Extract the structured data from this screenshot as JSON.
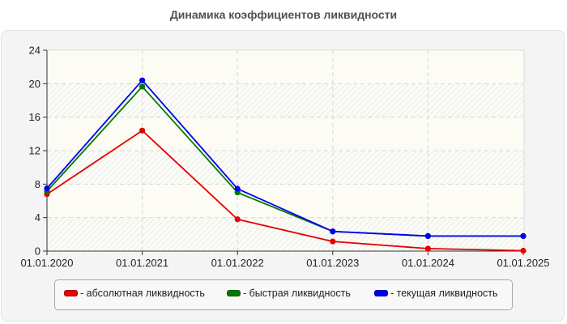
{
  "title": "Динамика коэффициентов ликвидности",
  "legend": {
    "items": [
      {
        "label": "- абсолютная ликвидность",
        "color": "#e60000"
      },
      {
        "label": "- быстрая ликвидность",
        "color": "#007a00"
      },
      {
        "label": "- текущая ликвидность",
        "color": "#0000ee"
      }
    ]
  },
  "chart_data": {
    "type": "line",
    "title": "Динамика коэффициентов ликвидности",
    "xlabel": "",
    "ylabel": "",
    "categories": [
      "01.01.2020",
      "01.01.2021",
      "01.01.2022",
      "01.01.2023",
      "01.01.2024",
      "01.01.2025"
    ],
    "y_ticks": [
      0,
      4,
      8,
      12,
      16,
      20,
      24
    ],
    "ylim": [
      0,
      24
    ],
    "grid": true,
    "legend_position": "bottom",
    "series": [
      {
        "name": "абсолютная ликвидность",
        "color": "#e60000",
        "values": [
          6.8,
          14.4,
          3.8,
          1.15,
          0.3,
          0.05
        ]
      },
      {
        "name": "быстрая ликвидность",
        "color": "#007a00",
        "values": [
          7.15,
          19.65,
          7.0,
          2.35,
          1.8,
          1.8
        ]
      },
      {
        "name": "текущая ликвидность",
        "color": "#0000ee",
        "values": [
          7.5,
          20.4,
          7.45,
          2.35,
          1.8,
          1.8
        ]
      }
    ]
  }
}
